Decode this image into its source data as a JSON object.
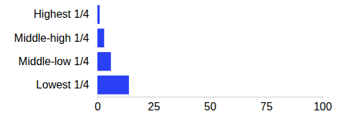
{
  "chart_data": {
    "type": "bar",
    "orientation": "horizontal",
    "categories": [
      "Highest 1/4",
      "Middle-high 1/4",
      "Middle-low 1/4",
      "Lowest 1/4"
    ],
    "values": [
      1,
      3,
      6,
      14
    ],
    "color": "#2940f5",
    "xlim": [
      0,
      100
    ],
    "xticks": [
      0,
      25,
      50,
      75,
      100
    ],
    "grid": false
  }
}
